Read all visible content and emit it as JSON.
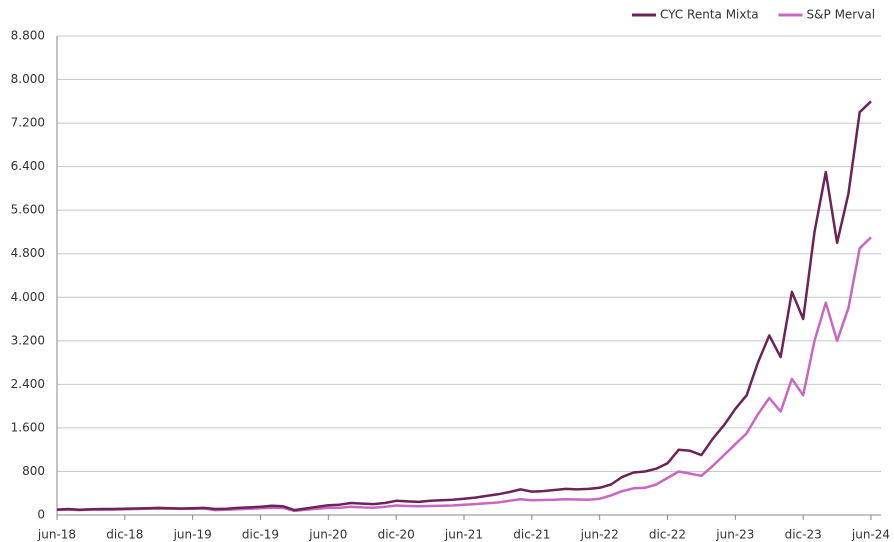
{
  "chart_data": {
    "type": "line",
    "categories": [
      "jun-18",
      null,
      null,
      null,
      null,
      null,
      "dic-18",
      null,
      null,
      null,
      null,
      null,
      "jun-19",
      null,
      null,
      null,
      null,
      null,
      "dic-19",
      null,
      null,
      null,
      null,
      null,
      "jun-20",
      null,
      null,
      null,
      null,
      null,
      "dic-20",
      null,
      null,
      null,
      null,
      null,
      "jun-21",
      null,
      null,
      null,
      null,
      null,
      "dic-21",
      null,
      null,
      null,
      null,
      null,
      "jun-22",
      null,
      null,
      null,
      null,
      null,
      "dic-22",
      null,
      null,
      null,
      null,
      null,
      "jun-23",
      null,
      null,
      null,
      null,
      null,
      "dic-23",
      null,
      null,
      null,
      null,
      null,
      "jun-24"
    ],
    "series": [
      {
        "name": "CYC Renta Mixta",
        "color": "#6b2457",
        "values": [
          100,
          110,
          95,
          105,
          110,
          110,
          115,
          120,
          125,
          130,
          125,
          120,
          125,
          130,
          110,
          115,
          130,
          140,
          150,
          170,
          160,
          90,
          120,
          150,
          180,
          190,
          220,
          210,
          200,
          220,
          260,
          250,
          240,
          260,
          270,
          280,
          300,
          320,
          350,
          380,
          420,
          470,
          430,
          440,
          460,
          480,
          470,
          480,
          500,
          560,
          700,
          780,
          800,
          850,
          950,
          1200,
          1180,
          1100,
          1400,
          1650,
          1950,
          2200,
          2800,
          3300,
          2900,
          4100,
          3600,
          5200,
          6300,
          5000,
          5900,
          7400,
          7600
        ]
      },
      {
        "name": "S&P Merval",
        "color": "#c966c4",
        "values": [
          95,
          100,
          90,
          100,
          100,
          100,
          105,
          110,
          115,
          120,
          118,
          112,
          115,
          120,
          90,
          95,
          105,
          115,
          125,
          135,
          130,
          75,
          95,
          115,
          130,
          135,
          150,
          140,
          135,
          150,
          175,
          165,
          160,
          165,
          170,
          175,
          190,
          200,
          215,
          230,
          260,
          290,
          270,
          275,
          280,
          290,
          285,
          280,
          300,
          360,
          440,
          490,
          500,
          560,
          680,
          800,
          760,
          720,
          900,
          1100,
          1300,
          1500,
          1850,
          2150,
          1900,
          2500,
          2200,
          3200,
          3900,
          3200,
          3800,
          4900,
          5100
        ]
      }
    ],
    "ylim": [
      0,
      8800
    ],
    "yticks": [
      0,
      800,
      {
        "value": 1600,
        "label": "1.600"
      },
      {
        "value": 2400,
        "label": "2.400"
      },
      {
        "value": 3200,
        "label": "3.200"
      },
      {
        "value": 4000,
        "label": "4.000"
      },
      {
        "value": 4800,
        "label": "4.800"
      },
      {
        "value": 5600,
        "label": "5.600"
      },
      {
        "value": 6400,
        "label": "6.400"
      },
      {
        "value": 7200,
        "label": "7.200"
      },
      {
        "value": 8000,
        "label": "8.000"
      },
      {
        "value": 8800,
        "label": "8.800"
      }
    ],
    "grid": true,
    "legend": "top-right"
  }
}
